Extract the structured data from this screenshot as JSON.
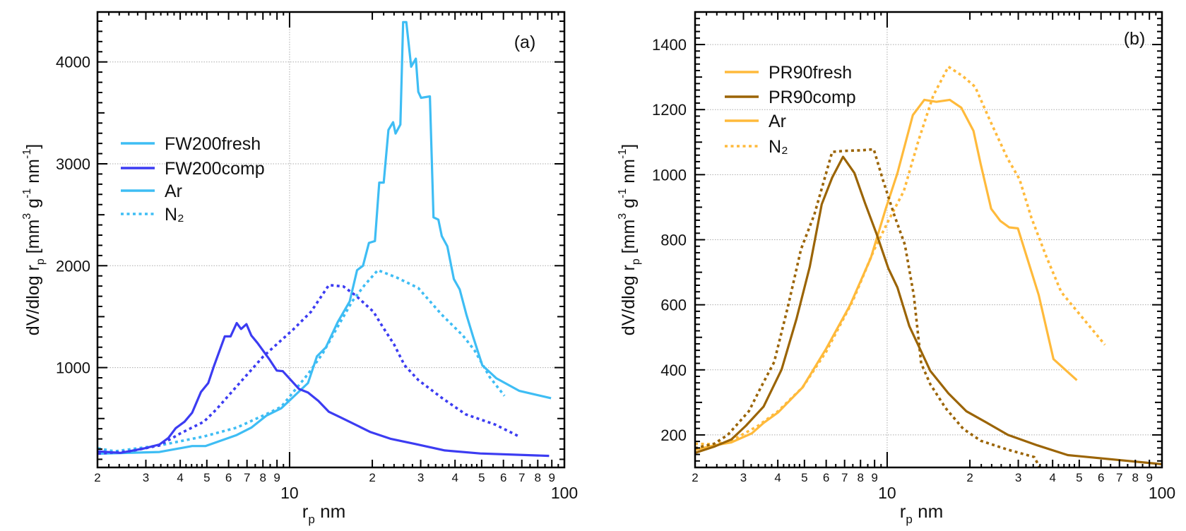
{
  "chart_data": [
    {
      "type": "line",
      "panel_label": "(a)",
      "x_scale": "log",
      "xlim": [
        2,
        100
      ],
      "ylim": [
        20,
        4490
      ],
      "x_tick_labels_minor": [
        "2",
        "3",
        "4",
        "5",
        "6",
        "7",
        "8",
        "9"
      ],
      "x_tick_labels_major": [
        "10",
        "100"
      ],
      "y_ticks": [
        1000,
        2000,
        3000,
        4000
      ],
      "y_minor_step": 100,
      "grid": "dotted at major ticks",
      "xlabel": {
        "main": "r",
        "sub": "p",
        "rest": "  nm"
      },
      "ylabel": [
        {
          "t": "dV/dlog r"
        },
        {
          "sub": "p"
        },
        {
          "t": " [mm"
        },
        {
          "sup": "3"
        },
        {
          "t": " g"
        },
        {
          "sup": "-1"
        },
        {
          "t": " nm"
        },
        {
          "sup": "-1"
        },
        {
          "t": "]"
        }
      ],
      "legend_placement": "left-middle",
      "legend": [
        {
          "label": "FW200fresh",
          "color": "#3ebdf4",
          "style": "solid"
        },
        {
          "label": "FW200comp",
          "color": "#3c3cf2",
          "style": "solid"
        },
        {
          "label": "Ar",
          "color": "#3ebdf4",
          "style": "solid"
        },
        {
          "label": "N₂",
          "color": "#3ebdf4",
          "style": "dotted"
        }
      ],
      "series": [
        {
          "sample": "FW200fresh",
          "gas": "Ar",
          "color": "#3ebdf4",
          "style": "solid",
          "x": [
            2.01,
            3.36,
            4.42,
            4.94,
            6.42,
            7.26,
            8.23,
            9.33,
            11.67,
            12.58,
            13.55,
            14.97,
            16.55,
            17.6,
            18.5,
            19.45,
            20.45,
            21.2,
            22.0,
            22.9,
            23.8,
            24.3,
            25.3,
            25.9,
            26.6,
            27.7,
            28.8,
            29.4,
            30.1,
            32.4,
            33.4,
            34.8,
            35.8,
            37.5,
            39.6,
            41.6,
            44.0,
            46.6,
            50.3,
            54.0,
            56.5,
            68.6,
            89.4
          ],
          "y": [
            155,
            172,
            230,
            230,
            338,
            411,
            528,
            601,
            848,
            1111,
            1198,
            1446,
            1650,
            1956,
            2000,
            2224,
            2242,
            2816,
            2816,
            3332,
            3408,
            3297,
            3385,
            4391,
            4391,
            3953,
            4032,
            3706,
            3647,
            3662,
            2475,
            2452,
            2292,
            2190,
            1869,
            1767,
            1519,
            1298,
            1021,
            945,
            896,
            771,
            700
          ]
        },
        {
          "sample": "FW200fresh",
          "gas": "N₂",
          "color": "#3ebdf4",
          "style": "dotted",
          "x": [
            2.01,
            2.31,
            3.36,
            4.88,
            6.42,
            8.44,
            9.33,
            11.67,
            13.2,
            14.97,
            16.9,
            18.75,
            20.95,
            24.6,
            29.4,
            35.8,
            42.7,
            47.1,
            53.5,
            60.5
          ],
          "y": [
            207,
            178,
            236,
            324,
            411,
            557,
            615,
            936,
            1140,
            1402,
            1650,
            1810,
            1956,
            1883,
            1781,
            1519,
            1315,
            1169,
            907,
            723
          ]
        },
        {
          "sample": "FW200comp",
          "gas": "Ar",
          "color": "#3c3cf2",
          "style": "solid",
          "x": [
            2.01,
            2.42,
            2.96,
            3.36,
            3.62,
            3.85,
            4.15,
            4.42,
            4.76,
            5.06,
            5.32,
            5.81,
            6.1,
            6.42,
            6.66,
            6.97,
            7.26,
            7.64,
            8.44,
            8.98,
            9.44,
            10.83,
            11.67,
            12.73,
            13.9,
            15.3,
            19.7,
            23.4,
            28.6,
            36.7,
            49.4,
            88.0
          ],
          "y": [
            178,
            163,
            207,
            245,
            309,
            405,
            469,
            557,
            761,
            848,
            1023,
            1306,
            1306,
            1437,
            1379,
            1426,
            1315,
            1242,
            1082,
            971,
            965,
            790,
            755,
            673,
            566,
            513,
            367,
            300,
            251,
            187,
            157,
            134
          ]
        },
        {
          "sample": "FW200comp",
          "gas": "N₂",
          "color": "#3c3cf2",
          "style": "dotted",
          "x": [
            2.01,
            2.62,
            3.36,
            4.0,
            4.88,
            5.4,
            6.58,
            8.03,
            10.3,
            11.97,
            13.9,
            15.7,
            17.4,
            20.2,
            21.8,
            24.0,
            26.2,
            29.4,
            35.8,
            43.7,
            56.1,
            68.0
          ],
          "y": [
            155,
            178,
            236,
            353,
            469,
            586,
            848,
            1111,
            1373,
            1548,
            1810,
            1796,
            1708,
            1548,
            1402,
            1227,
            1023,
            878,
            703,
            542,
            440,
            328
          ]
        }
      ]
    },
    {
      "type": "line",
      "panel_label": "(b)",
      "x_scale": "log",
      "xlim": [
        2,
        100
      ],
      "ylim": [
        100,
        1500
      ],
      "x_tick_labels_minor": [
        "2",
        "3",
        "4",
        "5",
        "6",
        "7",
        "8",
        "9"
      ],
      "x_tick_labels_major": [
        "10",
        "100"
      ],
      "y_ticks": [
        200,
        400,
        600,
        800,
        1000,
        1200,
        1400
      ],
      "y_minor_step": 20,
      "grid": "dotted at major ticks",
      "xlabel": {
        "main": "r",
        "sub": "p",
        "rest": "  nm"
      },
      "ylabel": [
        {
          "t": "dV/dlog r"
        },
        {
          "sub": "p"
        },
        {
          "t": " [mm"
        },
        {
          "sup": "3"
        },
        {
          "t": " g"
        },
        {
          "sup": "-1"
        },
        {
          "t": " nm"
        },
        {
          "sup": "-1"
        },
        {
          "t": "]"
        }
      ],
      "legend_placement": "top-left",
      "legend": [
        {
          "label": "PR90fresh",
          "color": "#ffba3b",
          "style": "solid"
        },
        {
          "label": "PR90comp",
          "color": "#9b6404",
          "style": "solid"
        },
        {
          "label": "Ar",
          "color": "#ffba3b",
          "style": "solid"
        },
        {
          "label": "N₂",
          "color": "#ffba3b",
          "style": "dotted"
        }
      ],
      "series": [
        {
          "sample": "PR90fresh",
          "gas": "Ar",
          "color": "#ffba3b",
          "style": "solid",
          "x": [
            2.0,
            2.35,
            2.71,
            3.22,
            3.55,
            4.01,
            4.92,
            6.0,
            7.32,
            8.72,
            9.88,
            10.9,
            12.4,
            13.65,
            15.1,
            16.9,
            18.6,
            20.6,
            21.9,
            23.9,
            25.8,
            27.8,
            29.9,
            35.6,
            40.3,
            49.0
          ],
          "y": [
            154,
            168,
            177,
            205,
            237,
            269,
            346,
            465,
            598,
            744,
            895,
            1005,
            1183,
            1230,
            1224,
            1230,
            1206,
            1135,
            1032,
            895,
            858,
            838,
            835,
            630,
            433,
            368
          ]
        },
        {
          "sample": "PR90fresh",
          "gas": "N₂",
          "color": "#ffba3b",
          "style": "dotted",
          "x": [
            2.0,
            2.35,
            2.71,
            3.39,
            4.01,
            4.92,
            6.0,
            7.5,
            8.94,
            10.1,
            11.5,
            13.0,
            14.7,
            16.7,
            18.9,
            20.9,
            23.6,
            27.4,
            30.3,
            33.5,
            37.9,
            43.0,
            48.7,
            62.0
          ],
          "y": [
            173,
            171,
            182,
            228,
            273,
            346,
            456,
            612,
            767,
            858,
            950,
            1105,
            1242,
            1332,
            1302,
            1270,
            1169,
            1050,
            986,
            867,
            749,
            639,
            584,
            477
          ]
        },
        {
          "sample": "PR90comp",
          "gas": "Ar",
          "color": "#9b6404",
          "style": "solid",
          "x": [
            2.0,
            2.35,
            2.71,
            3.06,
            3.55,
            4.13,
            4.68,
            5.23,
            5.78,
            6.31,
            6.91,
            7.6,
            8.3,
            9.16,
            10.1,
            10.9,
            12.05,
            14.35,
            16.7,
            19.4,
            23.1,
            27.5,
            35.2,
            45.4,
            100
          ],
          "y": [
            145,
            164,
            186,
            228,
            287,
            401,
            557,
            717,
            909,
            991,
            1055,
            1005,
            913,
            817,
            712,
            653,
            534,
            397,
            328,
            273,
            237,
            200,
            168,
            138,
            110
          ]
        },
        {
          "sample": "PR90comp",
          "gas": "N₂",
          "color": "#9b6404",
          "style": "dotted",
          "x": [
            2.0,
            2.35,
            2.63,
            3.14,
            3.47,
            3.88,
            4.35,
            4.86,
            5.43,
            6.31,
            6.97,
            8.09,
            8.94,
            9.63,
            10.6,
            11.6,
            12.5,
            13.3,
            14.35,
            16.3,
            18.9,
            21.9,
            27.4,
            34.3,
            35.9
          ],
          "y": [
            159,
            173,
            200,
            273,
            346,
            424,
            593,
            771,
            877,
            1070,
            1073,
            1075,
            1078,
            986,
            877,
            785,
            630,
            420,
            356,
            283,
            219,
            182,
            155,
            132,
            100
          ]
        }
      ]
    }
  ]
}
